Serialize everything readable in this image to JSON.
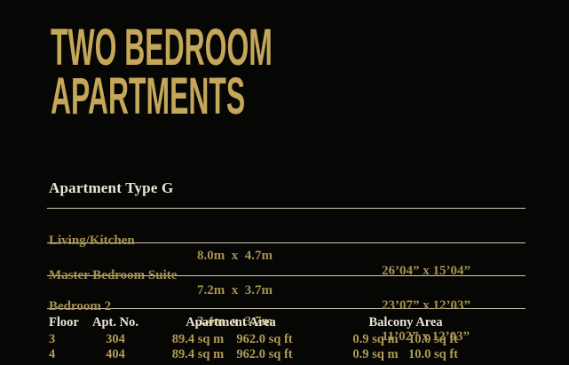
{
  "page": {
    "title_line1": "TWO BEDROOM",
    "title_line2": "APARTMENTS"
  },
  "section": {
    "heading": "Apartment Type G",
    "rooms": [
      {
        "label": "Living/Kitchen",
        "metric": "8.0m  x  4.7m",
        "imperial": "26’04” x 15’04”"
      },
      {
        "label": "Master Bedroom Suite",
        "metric": "7.2m  x  3.7m",
        "imperial": "23’07” x 12’03”"
      },
      {
        "label": "Bedroom 2",
        "metric": "3.4m  x  3.7m",
        "imperial": "11’02” x 12’03”"
      }
    ],
    "floors": {
      "headers": {
        "floor": "Floor",
        "apt_no": "Apt. No.",
        "apartment_area": "Apartment Area",
        "balcony_area": "Balcony Area"
      },
      "rows": [
        {
          "floor": "3",
          "apt_no": "304",
          "area_m": "89.4 sq m",
          "area_ft": "962.0 sq ft",
          "balcony_m": "0.9 sq m",
          "balcony_ft": "10.0 sq ft"
        },
        {
          "floor": "4",
          "apt_no": "404",
          "area_m": "89.4 sq m",
          "area_ft": "962.0 sq ft",
          "balcony_m": "0.9 sq m",
          "balcony_ft": "10.0 sq ft"
        }
      ]
    }
  },
  "colors": {
    "background": "#060604",
    "title_gold": "#c5a75a",
    "heading_cream": "#ece6d8",
    "row_gold": "#a8914f",
    "value_gold": "#b39a55",
    "rule": "#cfc8b4"
  }
}
